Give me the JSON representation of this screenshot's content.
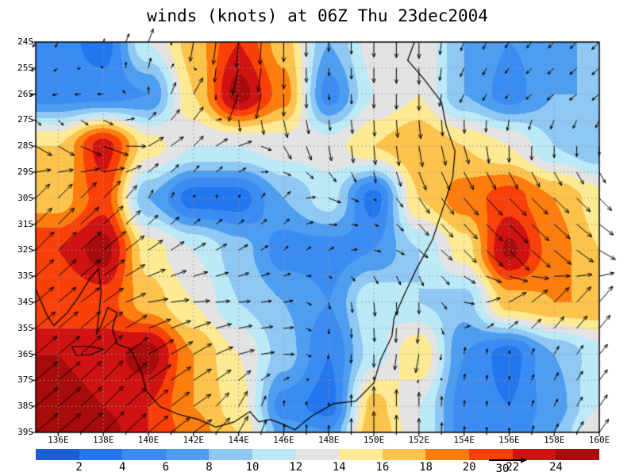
{
  "title": "winds (knots) at 06Z Thu 23dec2004",
  "axes": {
    "lat_labels": [
      "24S",
      "25S",
      "26S",
      "27S",
      "28S",
      "29S",
      "30S",
      "31S",
      "32S",
      "33S",
      "34S",
      "35S",
      "36S",
      "37S",
      "38S",
      "39S"
    ],
    "lon_labels": [
      "136E",
      "138E",
      "140E",
      "142E",
      "144E",
      "146E",
      "148E",
      "150E",
      "152E",
      "154E",
      "156E",
      "158E",
      "160E"
    ],
    "lon_min": 135,
    "lon_max": 160,
    "lat_min": 24,
    "lat_max": 39,
    "grid_lat_step_deg": 1,
    "grid_lon_step_deg": 2
  },
  "colorbar": {
    "levels": [
      2,
      4,
      6,
      8,
      10,
      12,
      14,
      16,
      18,
      20,
      22,
      24
    ],
    "colors": [
      "#1a60d1",
      "#2377ee",
      "#3b8cf2",
      "#4d9df0",
      "#8fc8f3",
      "#bce9f7",
      "#e3e3e3",
      "#fdea93",
      "#fdc34d",
      "#fd7d0d",
      "#f94009",
      "#cf1312",
      "#a80b0b"
    ],
    "ref_arrow_label": "30"
  },
  "style": {
    "gridline_color": "#999999",
    "coast_color": "#000000",
    "arrow_color": "#000000",
    "frame_color": "#000000"
  },
  "chart_data": {
    "type": "heatmap",
    "overlay": "vector-arrows",
    "title": "winds (knots) at 06Z Thu 23dec2004",
    "units": "knots",
    "levels": [
      2,
      4,
      6,
      8,
      10,
      12,
      14,
      16,
      18,
      20,
      22,
      24
    ],
    "reference_vector_knots": 30,
    "grid_lons": [
      135,
      136,
      138,
      140,
      142,
      144,
      146,
      148,
      150,
      152,
      154,
      156,
      158,
      160
    ],
    "grid_lats": [
      24,
      26,
      28,
      30,
      32,
      34,
      36,
      38,
      39
    ],
    "speed_knots": [
      [
        5,
        5,
        3,
        12,
        17,
        22,
        17,
        8,
        13,
        14,
        8,
        6,
        7,
        9
      ],
      [
        5,
        5,
        5,
        6,
        16,
        25,
        19,
        5,
        12,
        14,
        8,
        5,
        8,
        8
      ],
      [
        16,
        16,
        23,
        15,
        12,
        12,
        13,
        13,
        16,
        18,
        16,
        14,
        10,
        8
      ],
      [
        17,
        17,
        21,
        8,
        3,
        3,
        8,
        11,
        3,
        16,
        19,
        21,
        18,
        15
      ],
      [
        22,
        22,
        25,
        15,
        12,
        9,
        5,
        5,
        6,
        10,
        15,
        24.5,
        19,
        16
      ],
      [
        20,
        20,
        21,
        17,
        14,
        10,
        8,
        6,
        12,
        10,
        9,
        17,
        18,
        18
      ],
      [
        24,
        24,
        23,
        25,
        18,
        14,
        9,
        4,
        11,
        16,
        6,
        3,
        8,
        11
      ],
      [
        25,
        25,
        24,
        22,
        18,
        15,
        5,
        3,
        17,
        12,
        5,
        4,
        7,
        12
      ],
      [
        25,
        25,
        25,
        22,
        19,
        16,
        7,
        6,
        18,
        12,
        5,
        4,
        8,
        14
      ]
    ],
    "direction_deg_math": [
      [
        -120,
        -120,
        70,
        70,
        -100,
        -95,
        -90,
        -90,
        -90,
        -90,
        -110,
        -125,
        -135,
        -135
      ],
      [
        -170,
        -170,
        180,
        90,
        60,
        -110,
        -90,
        -85,
        -90,
        -90,
        -115,
        -130,
        -140,
        -140
      ],
      [
        -30,
        -30,
        -20,
        30,
        45,
        20,
        -60,
        -80,
        -85,
        -80,
        -75,
        -90,
        -90,
        -90
      ],
      [
        45,
        45,
        45,
        60,
        70,
        70,
        45,
        -20,
        -50,
        -55,
        -50,
        -45,
        -45,
        -45
      ],
      [
        45,
        45,
        40,
        35,
        30,
        30,
        40,
        30,
        -10,
        -40,
        -45,
        -45,
        -40,
        -30
      ],
      [
        40,
        40,
        35,
        10,
        5,
        5,
        10,
        -80,
        -85,
        -90,
        -10,
        30,
        45,
        50
      ],
      [
        40,
        40,
        45,
        30,
        30,
        15,
        0,
        -100,
        -90,
        -100,
        80,
        85,
        60,
        50
      ],
      [
        40,
        40,
        45,
        40,
        35,
        60,
        85,
        90,
        90,
        90,
        85,
        88,
        65,
        55
      ],
      [
        40,
        40,
        45,
        40,
        35,
        60,
        85,
        90,
        90,
        90,
        85,
        88,
        65,
        55
      ]
    ],
    "coastlines": [
      [
        [
          151.8,
          24.0
        ],
        [
          151.5,
          24.7
        ],
        [
          152.2,
          25.4
        ],
        [
          153.0,
          26.3
        ],
        [
          153.2,
          27.2
        ],
        [
          153.6,
          28.2
        ],
        [
          153.5,
          29.2
        ],
        [
          153.1,
          30.3
        ],
        [
          152.6,
          31.6
        ],
        [
          151.9,
          32.7
        ],
        [
          151.3,
          33.8
        ],
        [
          150.9,
          34.6
        ],
        [
          150.8,
          35.3
        ],
        [
          150.3,
          36.2
        ],
        [
          150.0,
          37.1
        ],
        [
          149.2,
          37.8
        ],
        [
          148.2,
          37.9
        ],
        [
          147.2,
          38.4
        ],
        [
          146.5,
          38.9
        ],
        [
          146.0,
          38.7
        ],
        [
          145.4,
          38.5
        ],
        [
          144.9,
          38.6
        ],
        [
          144.5,
          38.2
        ],
        [
          143.8,
          38.6
        ],
        [
          143.0,
          38.8
        ],
        [
          142.2,
          38.5
        ],
        [
          141.3,
          38.3
        ],
        [
          140.5,
          38.0
        ],
        [
          139.9,
          37.4
        ],
        [
          139.7,
          36.7
        ],
        [
          139.2,
          35.8
        ],
        [
          138.6,
          35.6
        ],
        [
          138.4,
          35.0
        ],
        [
          138.6,
          34.4
        ],
        [
          138.2,
          34.2
        ],
        [
          137.9,
          34.9
        ],
        [
          137.7,
          35.2
        ],
        [
          137.8,
          34.5
        ],
        [
          137.9,
          33.6
        ],
        [
          137.8,
          32.7
        ],
        [
          137.4,
          33.1
        ],
        [
          136.9,
          33.8
        ],
        [
          136.4,
          34.4
        ],
        [
          135.8,
          34.9
        ],
        [
          135.5,
          34.5
        ],
        [
          135.2,
          33.9
        ],
        [
          135.0,
          33.5
        ]
      ],
      [
        [
          136.6,
          35.7
        ],
        [
          137.4,
          35.7
        ],
        [
          138.0,
          35.8
        ],
        [
          137.5,
          36.0
        ],
        [
          136.8,
          36.05
        ],
        [
          136.6,
          35.7
        ]
      ]
    ]
  }
}
